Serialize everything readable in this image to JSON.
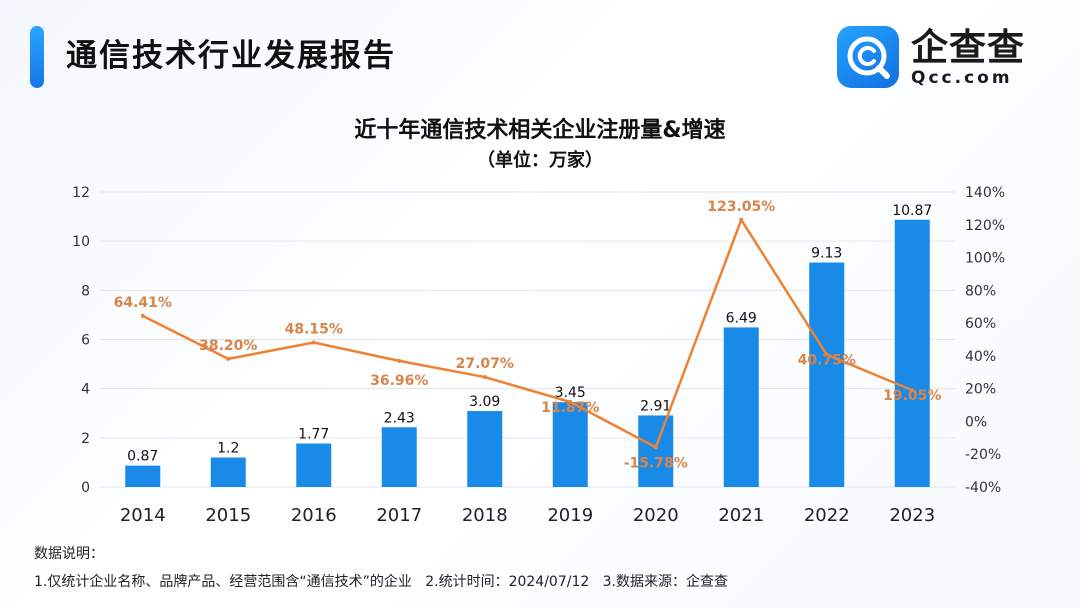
{
  "header": {
    "title": "通信技术行业发展报告"
  },
  "logo": {
    "cn": "企查查",
    "en": "Qcc.com"
  },
  "chart_data": {
    "type": "bar",
    "title": "近十年通信技术相关企业注册量&增速",
    "subtitle": "（单位：万家）",
    "categories": [
      "2014",
      "2015",
      "2016",
      "2017",
      "2018",
      "2019",
      "2020",
      "2021",
      "2022",
      "2023"
    ],
    "series": [
      {
        "type": "bar",
        "values": [
          0.87,
          1.2,
          1.77,
          2.43,
          3.09,
          3.45,
          2.91,
          6.49,
          9.13,
          10.87
        ],
        "labels": [
          "0.87",
          "1.2",
          "1.77",
          "2.43",
          "3.09",
          "3.45",
          "2.91",
          "6.49",
          "9.13",
          "10.87"
        ],
        "color": "#1a8ae8"
      },
      {
        "type": "line",
        "axis": "right",
        "values": [
          64.41,
          38.2,
          48.15,
          36.96,
          27.07,
          11.87,
          -15.78,
          123.05,
          40.75,
          19.05
        ],
        "labels": [
          "64.41%",
          "38.20%",
          "48.15%",
          "36.96%",
          "27.07%",
          "11.87%",
          "-15.78%",
          "123.05%",
          "40.75%",
          "19.05%"
        ],
        "color": "#ee8233"
      }
    ],
    "y_left": {
      "ylim": [
        0,
        12
      ],
      "ticks": [
        "0",
        "2",
        "4",
        "6",
        "8",
        "10",
        "12"
      ]
    },
    "y_right": {
      "ylim": [
        -40,
        140
      ],
      "ticks": [
        "-40%",
        "-20%",
        "0%",
        "20%",
        "40%",
        "60%",
        "80%",
        "100%",
        "120%",
        "140%"
      ]
    },
    "grid": true,
    "legend": "none"
  },
  "notes": {
    "title": "数据说明：",
    "body": "1.仅统计企业名称、品牌产品、经营范围含“通信技术”的企业   2.统计时间：2024/07/12   3.数据来源：企查查"
  },
  "colors": {
    "accent": "#1a8ae8",
    "line": "#ee8233",
    "line_label": "#d9844a"
  }
}
